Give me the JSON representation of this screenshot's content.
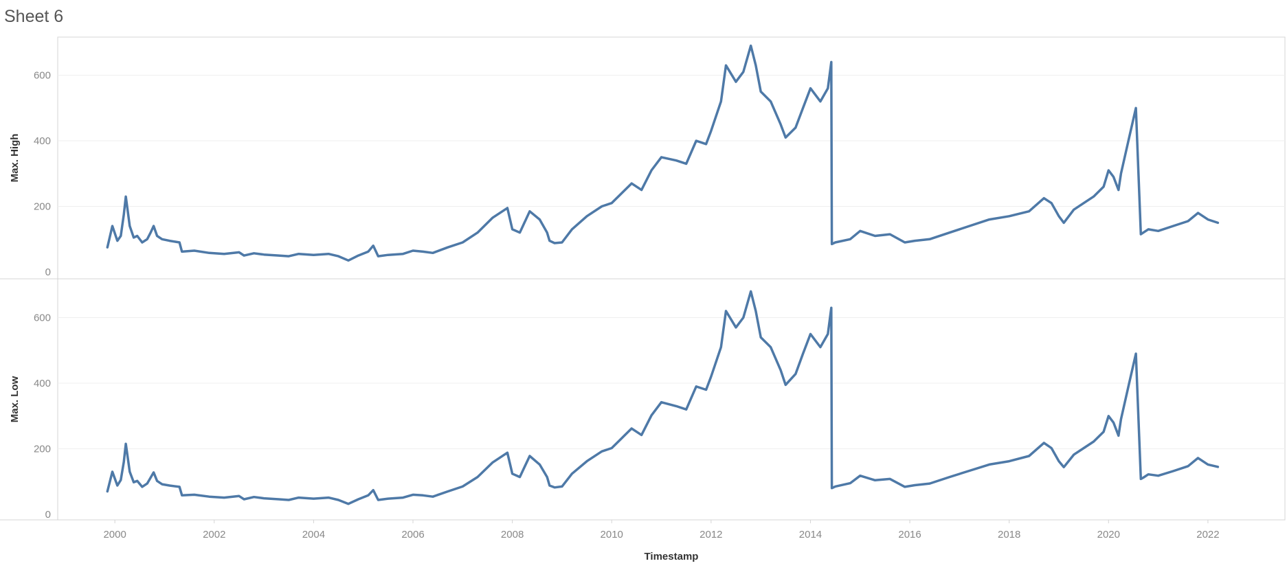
{
  "sheet": {
    "title": "Sheet 6"
  },
  "colors": {
    "line": "#4e79a7",
    "grid": "#efefef",
    "border": "#d4d4d4"
  },
  "chart_data": {
    "type": "line",
    "xlabel": "Timestamp",
    "xlim": [
      1998.85,
      2023.55
    ],
    "x_ticks": [
      2000,
      2002,
      2004,
      2006,
      2008,
      2010,
      2012,
      2014,
      2016,
      2018,
      2020,
      2022
    ],
    "x_tick_labels": [
      "2000",
      "2002",
      "2004",
      "2006",
      "2008",
      "2010",
      "2012",
      "2014",
      "2016",
      "2018",
      "2020",
      "2022"
    ],
    "grid": true,
    "panels": [
      {
        "ylabel": "Max. High",
        "ylim": [
          0,
          740
        ],
        "y_ticks": [
          0,
          200,
          400,
          600
        ],
        "y_tick_labels": [
          "0",
          "200",
          "400",
          "600"
        ],
        "series": [
          {
            "x": [
              1999.85,
              1999.95,
              2000.05,
              2000.12,
              2000.18,
              2000.22,
              2000.3,
              2000.38,
              2000.45,
              2000.55,
              2000.65,
              2000.72,
              2000.78,
              2000.85,
              2000.95,
              2001.1,
              2001.3,
              2001.35,
              2001.6,
              2001.9,
              2002.2,
              2002.5,
              2002.6,
              2002.8,
              2003.0,
              2003.3,
              2003.5,
              2003.7,
              2004.0,
              2004.3,
              2004.5,
              2004.7,
              2004.9,
              2005.1,
              2005.2,
              2005.3,
              2005.5,
              2005.8,
              2006.0,
              2006.2,
              2006.4,
              2006.7,
              2007.0,
              2007.3,
              2007.6,
              2007.9,
              2008.0,
              2008.15,
              2008.35,
              2008.55,
              2008.7,
              2008.75,
              2008.85,
              2009.0,
              2009.2,
              2009.5,
              2009.8,
              2010.0,
              2010.2,
              2010.4,
              2010.6,
              2010.8,
              2011.0,
              2011.3,
              2011.5,
              2011.7,
              2011.9,
              2012.0,
              2012.2,
              2012.3,
              2012.5,
              2012.65,
              2012.8,
              2012.9,
              2013.0,
              2013.2,
              2013.4,
              2013.5,
              2013.7,
              2013.85,
              2014.0,
              2014.2,
              2014.35,
              2014.42,
              2014.43,
              2014.5,
              2014.8,
              2015.0,
              2015.3,
              2015.6,
              2015.9,
              2016.1,
              2016.4,
              2016.8,
              2017.2,
              2017.6,
              2018.0,
              2018.4,
              2018.7,
              2018.85,
              2019.0,
              2019.1,
              2019.3,
              2019.5,
              2019.7,
              2019.9,
              2020.0,
              2020.1,
              2020.2,
              2020.25,
              2020.4,
              2020.55,
              2020.65,
              2020.7,
              2020.8,
              2021.0,
              2021.3,
              2021.6,
              2021.8,
              2022.0,
              2022.2
            ],
            "y": [
              75,
              140,
              95,
              110,
              175,
              230,
              140,
              105,
              110,
              90,
              100,
              120,
              140,
              110,
              100,
              95,
              90,
              62,
              65,
              58,
              55,
              60,
              50,
              57,
              53,
              50,
              48,
              55,
              52,
              55,
              48,
              35,
              50,
              62,
              80,
              48,
              52,
              55,
              65,
              62,
              58,
              75,
              90,
              120,
              165,
              195,
              130,
              120,
              185,
              160,
              120,
              95,
              88,
              90,
              130,
              170,
              200,
              210,
              240,
              270,
              250,
              310,
              350,
              340,
              330,
              400,
              390,
              430,
              520,
              630,
              580,
              610,
              690,
              630,
              550,
              520,
              450,
              410,
              440,
              500,
              560,
              520,
              560,
              640,
              85,
              90,
              100,
              125,
              110,
              115,
              90,
              95,
              100,
              120,
              140,
              160,
              170,
              185,
              225,
              210,
              170,
              150,
              190,
              210,
              230,
              260,
              310,
              290,
              250,
              300,
              400,
              500,
              115,
              120,
              130,
              125,
              140,
              155,
              180,
              160,
              150
            ]
          }
        ]
      },
      {
        "ylabel": "Max. Low",
        "ylim": [
          0,
          740
        ],
        "y_ticks": [
          0,
          200,
          400,
          600
        ],
        "y_tick_labels": [
          "0",
          "200",
          "400",
          "600"
        ],
        "series": [
          {
            "x": [
              1999.85,
              1999.95,
              2000.05,
              2000.12,
              2000.18,
              2000.22,
              2000.3,
              2000.38,
              2000.45,
              2000.55,
              2000.65,
              2000.72,
              2000.78,
              2000.85,
              2000.95,
              2001.1,
              2001.3,
              2001.35,
              2001.6,
              2001.9,
              2002.2,
              2002.5,
              2002.6,
              2002.8,
              2003.0,
              2003.3,
              2003.5,
              2003.7,
              2004.0,
              2004.3,
              2004.5,
              2004.7,
              2004.9,
              2005.1,
              2005.2,
              2005.3,
              2005.5,
              2005.8,
              2006.0,
              2006.2,
              2006.4,
              2006.7,
              2007.0,
              2007.3,
              2007.6,
              2007.9,
              2008.0,
              2008.15,
              2008.35,
              2008.55,
              2008.7,
              2008.75,
              2008.85,
              2009.0,
              2009.2,
              2009.5,
              2009.8,
              2010.0,
              2010.2,
              2010.4,
              2010.6,
              2010.8,
              2011.0,
              2011.3,
              2011.5,
              2011.7,
              2011.9,
              2012.0,
              2012.2,
              2012.3,
              2012.5,
              2012.65,
              2012.8,
              2012.9,
              2013.0,
              2013.2,
              2013.4,
              2013.5,
              2013.7,
              2013.85,
              2014.0,
              2014.2,
              2014.35,
              2014.42,
              2014.43,
              2014.5,
              2014.8,
              2015.0,
              2015.3,
              2015.6,
              2015.9,
              2016.1,
              2016.4,
              2016.8,
              2017.2,
              2017.6,
              2018.0,
              2018.4,
              2018.7,
              2018.85,
              2019.0,
              2019.1,
              2019.3,
              2019.5,
              2019.7,
              2019.9,
              2020.0,
              2020.1,
              2020.2,
              2020.25,
              2020.4,
              2020.55,
              2020.65,
              2020.7,
              2020.8,
              2021.0,
              2021.3,
              2021.6,
              2021.8,
              2022.0,
              2022.2
            ],
            "y": [
              70,
              130,
              88,
              105,
              160,
              215,
              130,
              98,
              102,
              84,
              94,
              112,
              128,
              102,
              92,
              88,
              84,
              58,
              60,
              54,
              51,
              56,
              46,
              53,
              49,
              46,
              44,
              51,
              48,
              51,
              44,
              32,
              46,
              58,
              74,
              44,
              48,
              51,
              60,
              58,
              54,
              70,
              85,
              114,
              158,
              188,
              124,
              114,
              178,
              152,
              114,
              88,
              82,
              85,
              124,
              162,
              192,
              202,
              232,
              262,
              242,
              302,
              342,
              330,
              320,
              390,
              380,
              420,
              510,
              620,
              570,
              600,
              680,
              620,
              540,
              510,
              440,
              395,
              428,
              490,
              550,
              510,
              550,
              630,
              80,
              85,
              95,
              118,
              104,
              108,
              84,
              89,
              94,
              114,
              133,
              152,
              162,
              178,
              218,
              202,
              162,
              144,
              182,
              202,
              222,
              252,
              300,
              280,
              240,
              290,
              390,
              490,
              108,
              112,
              122,
              118,
              132,
              147,
              172,
              152,
              145
            ]
          }
        ]
      }
    ]
  }
}
